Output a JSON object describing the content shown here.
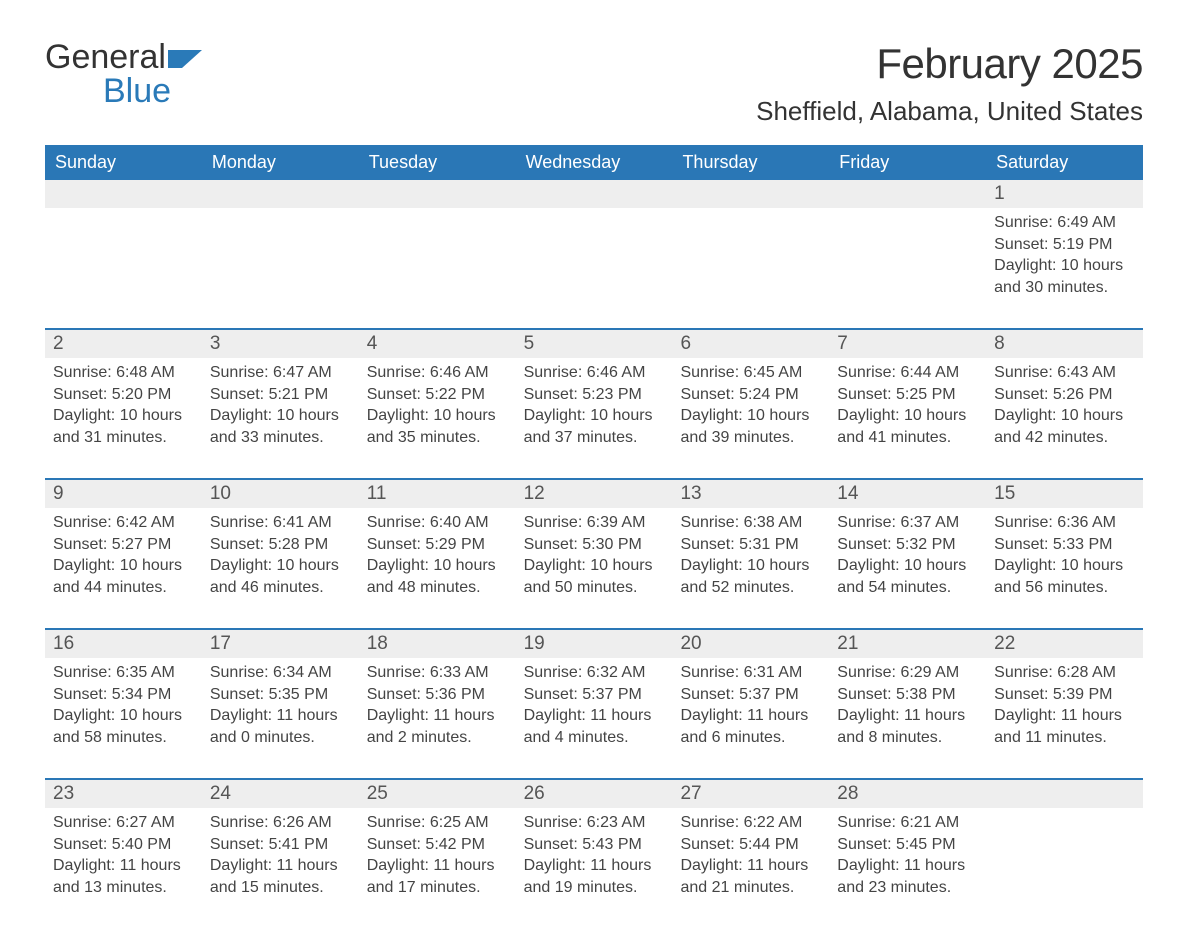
{
  "logo": {
    "part1": "General",
    "part2": "Blue"
  },
  "title": "February 2025",
  "location": "Sheffield, Alabama, United States",
  "colors": {
    "header_bg": "#2a77b6",
    "header_text": "#ffffff",
    "daynum_bg": "#eeeeee",
    "text": "#444444",
    "accent": "#2a7ab8"
  },
  "day_names": [
    "Sunday",
    "Monday",
    "Tuesday",
    "Wednesday",
    "Thursday",
    "Friday",
    "Saturday"
  ],
  "weeks": [
    [
      null,
      null,
      null,
      null,
      null,
      null,
      {
        "n": "1",
        "sunrise": "Sunrise: 6:49 AM",
        "sunset": "Sunset: 5:19 PM",
        "d1": "Daylight: 10 hours",
        "d2": "and 30 minutes."
      }
    ],
    [
      {
        "n": "2",
        "sunrise": "Sunrise: 6:48 AM",
        "sunset": "Sunset: 5:20 PM",
        "d1": "Daylight: 10 hours",
        "d2": "and 31 minutes."
      },
      {
        "n": "3",
        "sunrise": "Sunrise: 6:47 AM",
        "sunset": "Sunset: 5:21 PM",
        "d1": "Daylight: 10 hours",
        "d2": "and 33 minutes."
      },
      {
        "n": "4",
        "sunrise": "Sunrise: 6:46 AM",
        "sunset": "Sunset: 5:22 PM",
        "d1": "Daylight: 10 hours",
        "d2": "and 35 minutes."
      },
      {
        "n": "5",
        "sunrise": "Sunrise: 6:46 AM",
        "sunset": "Sunset: 5:23 PM",
        "d1": "Daylight: 10 hours",
        "d2": "and 37 minutes."
      },
      {
        "n": "6",
        "sunrise": "Sunrise: 6:45 AM",
        "sunset": "Sunset: 5:24 PM",
        "d1": "Daylight: 10 hours",
        "d2": "and 39 minutes."
      },
      {
        "n": "7",
        "sunrise": "Sunrise: 6:44 AM",
        "sunset": "Sunset: 5:25 PM",
        "d1": "Daylight: 10 hours",
        "d2": "and 41 minutes."
      },
      {
        "n": "8",
        "sunrise": "Sunrise: 6:43 AM",
        "sunset": "Sunset: 5:26 PM",
        "d1": "Daylight: 10 hours",
        "d2": "and 42 minutes."
      }
    ],
    [
      {
        "n": "9",
        "sunrise": "Sunrise: 6:42 AM",
        "sunset": "Sunset: 5:27 PM",
        "d1": "Daylight: 10 hours",
        "d2": "and 44 minutes."
      },
      {
        "n": "10",
        "sunrise": "Sunrise: 6:41 AM",
        "sunset": "Sunset: 5:28 PM",
        "d1": "Daylight: 10 hours",
        "d2": "and 46 minutes."
      },
      {
        "n": "11",
        "sunrise": "Sunrise: 6:40 AM",
        "sunset": "Sunset: 5:29 PM",
        "d1": "Daylight: 10 hours",
        "d2": "and 48 minutes."
      },
      {
        "n": "12",
        "sunrise": "Sunrise: 6:39 AM",
        "sunset": "Sunset: 5:30 PM",
        "d1": "Daylight: 10 hours",
        "d2": "and 50 minutes."
      },
      {
        "n": "13",
        "sunrise": "Sunrise: 6:38 AM",
        "sunset": "Sunset: 5:31 PM",
        "d1": "Daylight: 10 hours",
        "d2": "and 52 minutes."
      },
      {
        "n": "14",
        "sunrise": "Sunrise: 6:37 AM",
        "sunset": "Sunset: 5:32 PM",
        "d1": "Daylight: 10 hours",
        "d2": "and 54 minutes."
      },
      {
        "n": "15",
        "sunrise": "Sunrise: 6:36 AM",
        "sunset": "Sunset: 5:33 PM",
        "d1": "Daylight: 10 hours",
        "d2": "and 56 minutes."
      }
    ],
    [
      {
        "n": "16",
        "sunrise": "Sunrise: 6:35 AM",
        "sunset": "Sunset: 5:34 PM",
        "d1": "Daylight: 10 hours",
        "d2": "and 58 minutes."
      },
      {
        "n": "17",
        "sunrise": "Sunrise: 6:34 AM",
        "sunset": "Sunset: 5:35 PM",
        "d1": "Daylight: 11 hours",
        "d2": "and 0 minutes."
      },
      {
        "n": "18",
        "sunrise": "Sunrise: 6:33 AM",
        "sunset": "Sunset: 5:36 PM",
        "d1": "Daylight: 11 hours",
        "d2": "and 2 minutes."
      },
      {
        "n": "19",
        "sunrise": "Sunrise: 6:32 AM",
        "sunset": "Sunset: 5:37 PM",
        "d1": "Daylight: 11 hours",
        "d2": "and 4 minutes."
      },
      {
        "n": "20",
        "sunrise": "Sunrise: 6:31 AM",
        "sunset": "Sunset: 5:37 PM",
        "d1": "Daylight: 11 hours",
        "d2": "and 6 minutes."
      },
      {
        "n": "21",
        "sunrise": "Sunrise: 6:29 AM",
        "sunset": "Sunset: 5:38 PM",
        "d1": "Daylight: 11 hours",
        "d2": "and 8 minutes."
      },
      {
        "n": "22",
        "sunrise": "Sunrise: 6:28 AM",
        "sunset": "Sunset: 5:39 PM",
        "d1": "Daylight: 11 hours",
        "d2": "and 11 minutes."
      }
    ],
    [
      {
        "n": "23",
        "sunrise": "Sunrise: 6:27 AM",
        "sunset": "Sunset: 5:40 PM",
        "d1": "Daylight: 11 hours",
        "d2": "and 13 minutes."
      },
      {
        "n": "24",
        "sunrise": "Sunrise: 6:26 AM",
        "sunset": "Sunset: 5:41 PM",
        "d1": "Daylight: 11 hours",
        "d2": "and 15 minutes."
      },
      {
        "n": "25",
        "sunrise": "Sunrise: 6:25 AM",
        "sunset": "Sunset: 5:42 PM",
        "d1": "Daylight: 11 hours",
        "d2": "and 17 minutes."
      },
      {
        "n": "26",
        "sunrise": "Sunrise: 6:23 AM",
        "sunset": "Sunset: 5:43 PM",
        "d1": "Daylight: 11 hours",
        "d2": "and 19 minutes."
      },
      {
        "n": "27",
        "sunrise": "Sunrise: 6:22 AM",
        "sunset": "Sunset: 5:44 PM",
        "d1": "Daylight: 11 hours",
        "d2": "and 21 minutes."
      },
      {
        "n": "28",
        "sunrise": "Sunrise: 6:21 AM",
        "sunset": "Sunset: 5:45 PM",
        "d1": "Daylight: 11 hours",
        "d2": "and 23 minutes."
      },
      null
    ]
  ]
}
